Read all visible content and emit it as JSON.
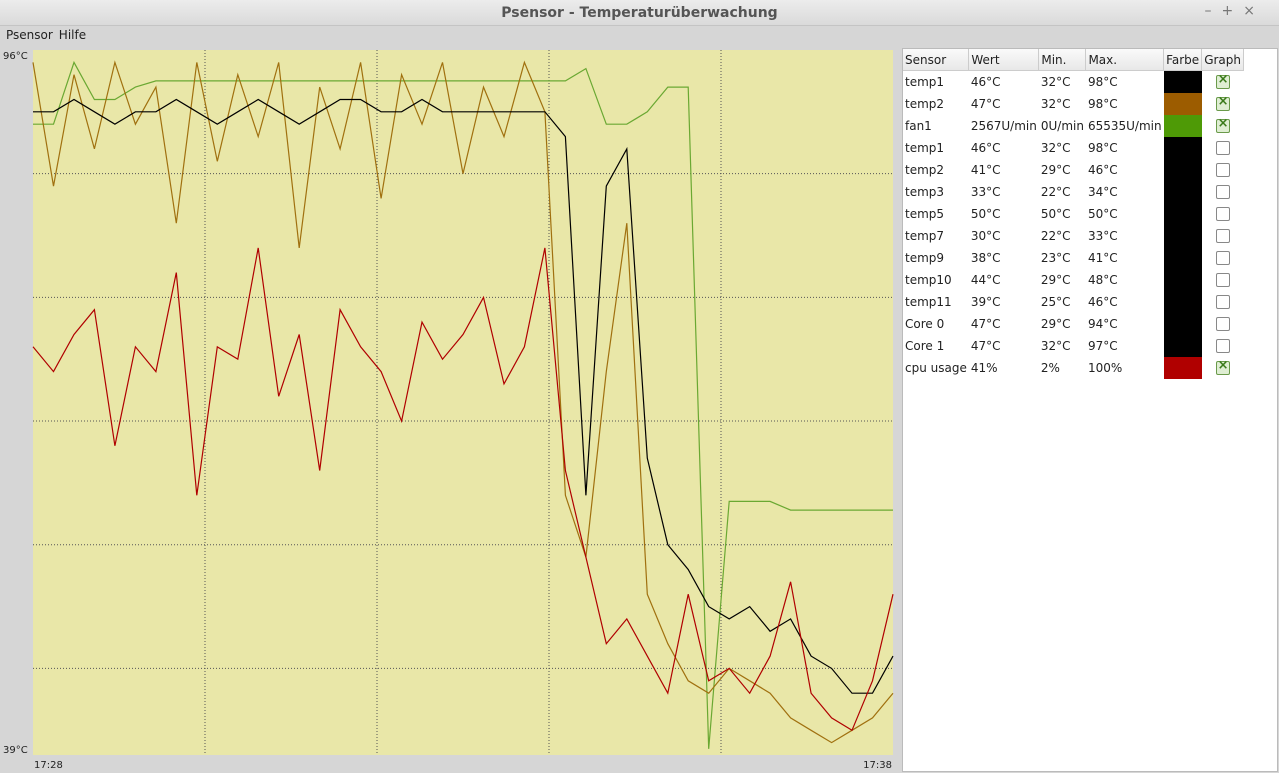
{
  "window": {
    "title": "Psensor - Temperaturüberwachung"
  },
  "menu": [
    "Psensor",
    "Hilfe"
  ],
  "graph": {
    "ylim": [
      39,
      96
    ],
    "yticks": [
      {
        "value": 96,
        "label": "96°C"
      },
      {
        "value": 39,
        "label": "39°C"
      }
    ],
    "xlabels": [
      "17:28",
      "17:38"
    ],
    "background": "#e9e7a8",
    "series": [
      {
        "color": "#6aa832",
        "values": [
          90,
          90,
          95,
          92,
          92,
          93,
          93.5,
          93.5,
          93.5,
          93.5,
          93.5,
          93.5,
          93.5,
          93.5,
          93.5,
          93.5,
          93.5,
          93.5,
          93.5,
          93.5,
          93.5,
          93.5,
          93.5,
          93.5,
          93.5,
          93.5,
          93.5,
          94.5,
          90,
          90,
          91,
          93,
          93,
          39.5,
          59.5,
          59.5,
          59.5,
          58.8,
          58.8,
          58.8,
          58.8,
          58.8,
          58.8
        ]
      },
      {
        "color": "#a0700f",
        "values": [
          95,
          85,
          94,
          88,
          95,
          90,
          93,
          82,
          95,
          87,
          94,
          89,
          95,
          80,
          93,
          88,
          95,
          84,
          94,
          90,
          95,
          86,
          93,
          89,
          95,
          91,
          60,
          55,
          70,
          82,
          52,
          48,
          45,
          44,
          46,
          45,
          44,
          42,
          41,
          40,
          41,
          42,
          44
        ]
      },
      {
        "color": "#000000",
        "values": [
          91,
          91,
          92,
          91,
          90,
          91,
          91,
          92,
          91,
          90,
          91,
          92,
          91,
          90,
          91,
          92,
          92,
          91,
          91,
          92,
          91,
          91,
          91,
          91,
          91,
          91,
          89,
          60,
          85,
          88,
          63,
          56,
          54,
          51,
          50,
          51,
          49,
          50,
          47,
          46,
          44,
          44,
          47
        ]
      },
      {
        "color": "#b00000",
        "values": [
          72,
          70,
          73,
          75,
          64,
          72,
          70,
          78,
          60,
          72,
          71,
          80,
          68,
          73,
          62,
          75,
          72,
          70,
          66,
          74,
          71,
          73,
          76,
          69,
          72,
          80,
          62,
          55,
          48,
          50,
          47,
          44,
          52,
          45,
          46,
          44,
          47,
          53,
          44,
          42,
          41,
          45,
          52
        ]
      }
    ]
  },
  "table": {
    "columns": [
      "Sensor",
      "Wert",
      "Min.",
      "Max.",
      "Farbe",
      "Graph"
    ],
    "rows": [
      {
        "cells": [
          "temp1",
          "46°C",
          "32°C",
          "98°C"
        ],
        "color": "#000000",
        "graph": true
      },
      {
        "cells": [
          "temp2",
          "47°C",
          "32°C",
          "98°C"
        ],
        "color": "#9c5c00",
        "graph": true
      },
      {
        "cells": [
          "fan1",
          "2567U/min",
          "0U/min",
          "65535U/min"
        ],
        "color": "#4e9a06",
        "graph": true
      },
      {
        "cells": [
          "temp1",
          "46°C",
          "32°C",
          "98°C"
        ],
        "color": "#000000",
        "graph": false
      },
      {
        "cells": [
          "temp2",
          "41°C",
          "29°C",
          "46°C"
        ],
        "color": "#000000",
        "graph": false
      },
      {
        "cells": [
          "temp3",
          "33°C",
          "22°C",
          "34°C"
        ],
        "color": "#000000",
        "graph": false
      },
      {
        "cells": [
          "temp5",
          "50°C",
          "50°C",
          "50°C"
        ],
        "color": "#000000",
        "graph": false
      },
      {
        "cells": [
          "temp7",
          "30°C",
          "22°C",
          "33°C"
        ],
        "color": "#000000",
        "graph": false
      },
      {
        "cells": [
          "temp9",
          "38°C",
          "23°C",
          "41°C"
        ],
        "color": "#000000",
        "graph": false
      },
      {
        "cells": [
          "temp10",
          "44°C",
          "29°C",
          "48°C"
        ],
        "color": "#000000",
        "graph": false
      },
      {
        "cells": [
          "temp11",
          "39°C",
          "25°C",
          "46°C"
        ],
        "color": "#000000",
        "graph": false
      },
      {
        "cells": [
          "Core 0",
          "47°C",
          "29°C",
          "94°C"
        ],
        "color": "#000000",
        "graph": false
      },
      {
        "cells": [
          "Core 1",
          "47°C",
          "32°C",
          "97°C"
        ],
        "color": "#000000",
        "graph": false
      },
      {
        "cells": [
          "cpu usage",
          "41%",
          "2%",
          "100%"
        ],
        "color": "#b00000",
        "graph": true
      }
    ]
  }
}
